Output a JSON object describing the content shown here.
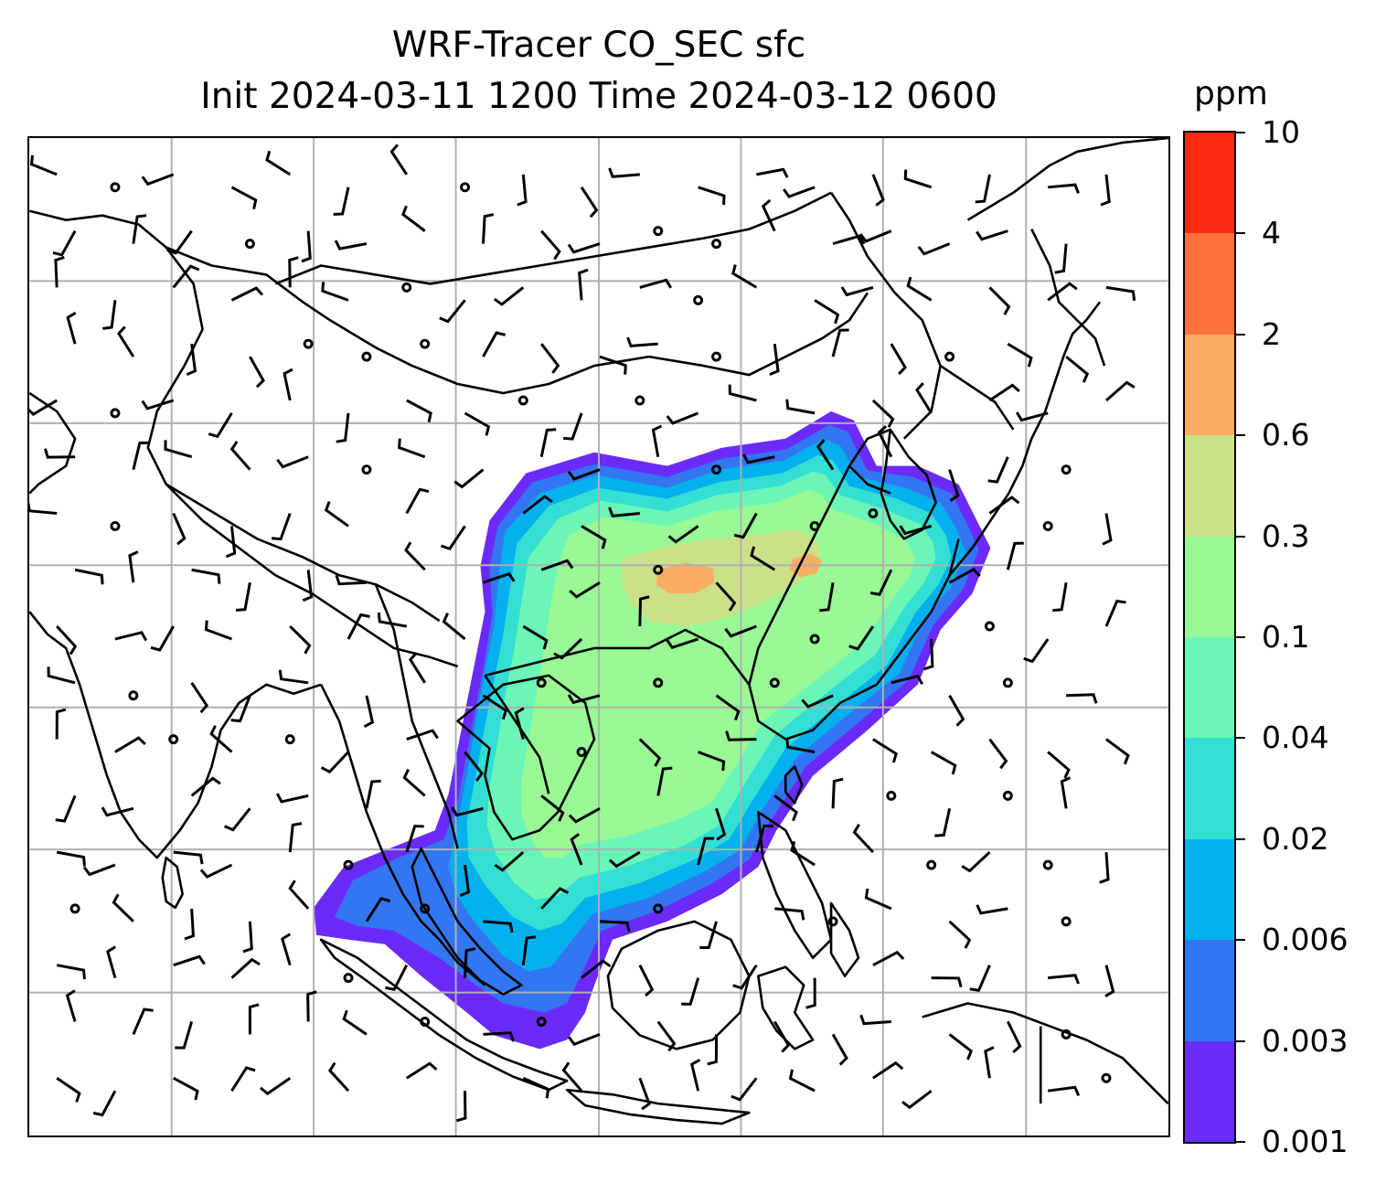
{
  "title": {
    "line1": "WRF-Tracer CO_SEC sfc",
    "line2": "Init 2024-03-11 1200 Time 2024-03-12 0600"
  },
  "colorbar": {
    "unit": "ppm",
    "levels": [
      "0.001",
      "0.003",
      "0.006",
      "0.02",
      "0.04",
      "0.1",
      "0.3",
      "0.6",
      "2",
      "4",
      "10"
    ],
    "colors": [
      "#6a2bfa",
      "#3376f1",
      "#04b0ed",
      "#33dfd2",
      "#6bf6b8",
      "#99f995",
      "#cbe187",
      "#fbad61",
      "#fe723b",
      "#fe2a15"
    ]
  },
  "map": {
    "gridlines": true,
    "gridline_color": "#b0b0b0",
    "coastline_color": "#000000",
    "wind_barb_color": "#000000"
  }
}
